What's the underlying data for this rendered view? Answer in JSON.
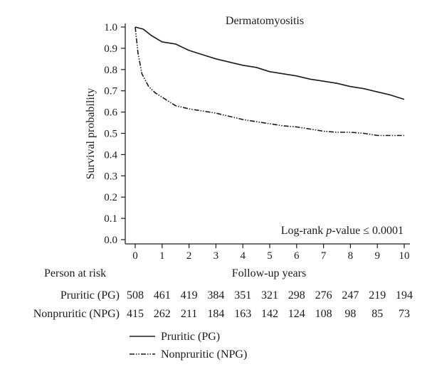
{
  "chart_data": {
    "type": "line",
    "title": "Dermatomyositis",
    "xlabel": "Follow-up years",
    "ylabel": "Survival probability",
    "xlim": [
      0,
      10
    ],
    "ylim": [
      0.0,
      1.0
    ],
    "x_ticks": [
      0,
      1,
      2,
      3,
      4,
      5,
      6,
      7,
      8,
      9,
      10
    ],
    "y_ticks": [
      "0.0",
      "0.1",
      "0.2",
      "0.3",
      "0.4",
      "0.5",
      "0.6",
      "0.7",
      "0.8",
      "0.9",
      "1.0"
    ],
    "grid": false,
    "annotation": {
      "prefix": "Log-rank ",
      "italic": "p",
      "suffix": "-value ≤ 0.0001"
    },
    "series": [
      {
        "name": "Pruritic (PG)",
        "style": "solid",
        "x": [
          0,
          0.3,
          0.6,
          1,
          1.5,
          2,
          2.5,
          3,
          3.5,
          4,
          4.5,
          5,
          5.5,
          6,
          6.5,
          7,
          7.5,
          8,
          8.5,
          9,
          9.5,
          10
        ],
        "y": [
          1.0,
          0.99,
          0.96,
          0.93,
          0.92,
          0.89,
          0.87,
          0.85,
          0.835,
          0.82,
          0.81,
          0.79,
          0.78,
          0.77,
          0.755,
          0.745,
          0.735,
          0.72,
          0.71,
          0.695,
          0.68,
          0.66
        ]
      },
      {
        "name": "Nonpruritic (NPG)",
        "style": "dash-dot-dot",
        "x": [
          0,
          0.1,
          0.25,
          0.5,
          0.75,
          1,
          1.5,
          2,
          2.5,
          3,
          3.5,
          4,
          4.5,
          5,
          5.5,
          6,
          6.5,
          7,
          7.5,
          8,
          8.5,
          9,
          9.5,
          10
        ],
        "y": [
          1.0,
          0.88,
          0.78,
          0.72,
          0.69,
          0.67,
          0.63,
          0.615,
          0.605,
          0.595,
          0.58,
          0.565,
          0.555,
          0.545,
          0.535,
          0.53,
          0.52,
          0.51,
          0.505,
          0.505,
          0.5,
          0.49,
          0.49,
          0.49
        ]
      }
    ],
    "risk_table": {
      "header": "Person at risk",
      "rows": [
        {
          "label": "Pruritic (PG)",
          "values": [
            "508",
            "461",
            "419",
            "384",
            "351",
            "321",
            "298",
            "276",
            "247",
            "219",
            "194"
          ]
        },
        {
          "label": "Nonpruritic (NPG)",
          "values": [
            "415",
            "262",
            "211",
            "184",
            "163",
            "142",
            "124",
            "108",
            "98",
            "85",
            "73"
          ]
        }
      ]
    },
    "legend": {
      "placement": "bottom-left",
      "entries": [
        {
          "label": "Pruritic (PG)",
          "style": "solid"
        },
        {
          "label": "Nonpruritic (NPG)",
          "style": "dash-dot-dot"
        }
      ]
    }
  }
}
